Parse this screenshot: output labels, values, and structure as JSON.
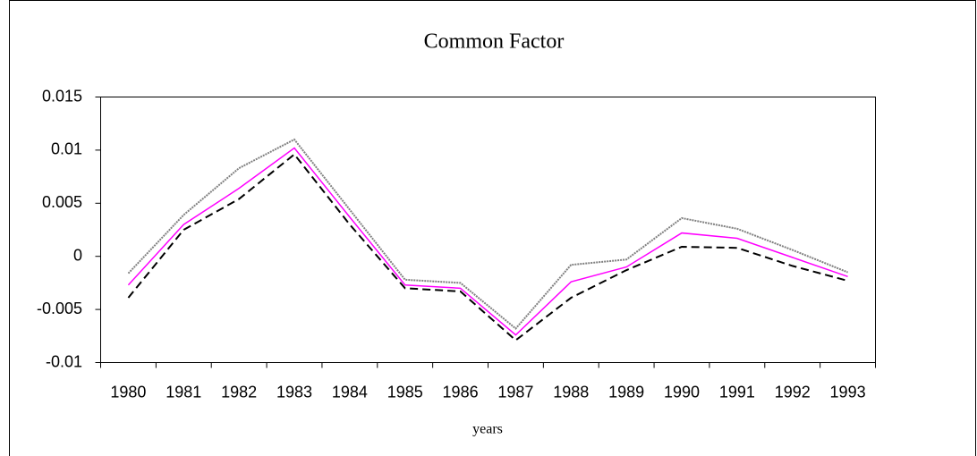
{
  "chart_data": {
    "type": "line",
    "title": "Common Factor",
    "x_label": "years",
    "categories": [
      "1980",
      "1981",
      "1982",
      "1983",
      "1984",
      "1985",
      "1986",
      "1987",
      "1988",
      "1989",
      "1990",
      "1991",
      "1992",
      "1993"
    ],
    "series": [
      {
        "color": "#808080",
        "line_style": "dotted",
        "values": [
          -0.0016,
          0.0039,
          0.0083,
          0.011,
          0.0044,
          -0.0022,
          -0.0025,
          -0.0068,
          -0.0008,
          -0.0003,
          0.0036,
          0.0026,
          0.0006,
          -0.0015
        ]
      },
      {
        "color": "#ff00ff",
        "line_style": "solid",
        "values": [
          -0.0027,
          0.003,
          0.0064,
          0.0102,
          0.0037,
          -0.0027,
          -0.003,
          -0.0074,
          -0.0024,
          -0.001,
          0.0022,
          0.0017,
          -0.0001,
          -0.0019
        ]
      },
      {
        "color": "#000000",
        "line_style": "dashed",
        "values": [
          -0.0039,
          0.0025,
          0.0054,
          0.0096,
          0.003,
          -0.003,
          -0.0033,
          -0.0079,
          -0.0039,
          -0.0013,
          0.0009,
          0.0008,
          -0.0009,
          -0.0023
        ]
      }
    ],
    "ylim": [
      -0.01,
      0.015
    ],
    "yticks": [
      -0.01,
      -0.005,
      0,
      0.005,
      0.01,
      0.015
    ],
    "grid": false
  }
}
